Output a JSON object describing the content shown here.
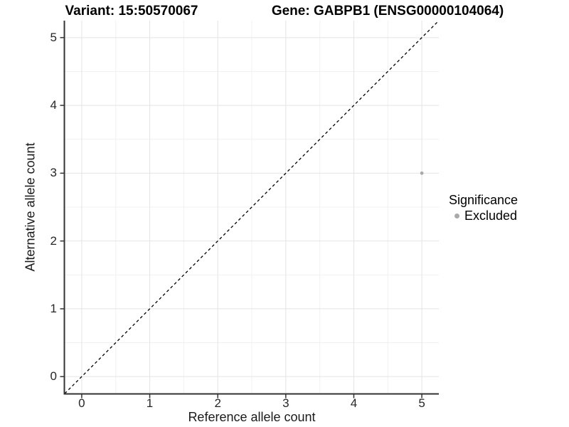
{
  "chart_data": {
    "type": "scatter",
    "title_variant": "Variant: 15:50570067",
    "title_gene": "Gene: GABPB1 (ENSG00000104064)",
    "xlabel": "Reference allele count",
    "ylabel": "Alternative allele count",
    "xlim": [
      -0.25,
      5.25
    ],
    "ylim": [
      -0.25,
      5.25
    ],
    "x_ticks": [
      0,
      1,
      2,
      3,
      4,
      5
    ],
    "y_ticks": [
      0,
      1,
      2,
      3,
      4,
      5
    ],
    "x_minor_ticks": [
      0.5,
      1.5,
      2.5,
      3.5,
      4.5
    ],
    "y_minor_ticks": [
      0.5,
      1.5,
      2.5,
      3.5,
      4.5
    ],
    "grid": true,
    "points": [
      {
        "x": 5,
        "y": 3,
        "series": "Excluded"
      }
    ],
    "reference_line": {
      "kind": "identity",
      "slope": 1,
      "intercept": 0,
      "style": "dashed",
      "color": "#000000"
    },
    "legend": {
      "title": "Significance",
      "position": "right",
      "items": [
        {
          "label": "Excluded",
          "color": "#a9a9a9"
        }
      ]
    },
    "colors": {
      "point": "#a9a9a9",
      "grid_major": "#e4e4e4",
      "grid_minor": "#f1f1f1",
      "axis_line": "#333333",
      "tick_mark": "#333333",
      "background": "#ffffff"
    }
  }
}
